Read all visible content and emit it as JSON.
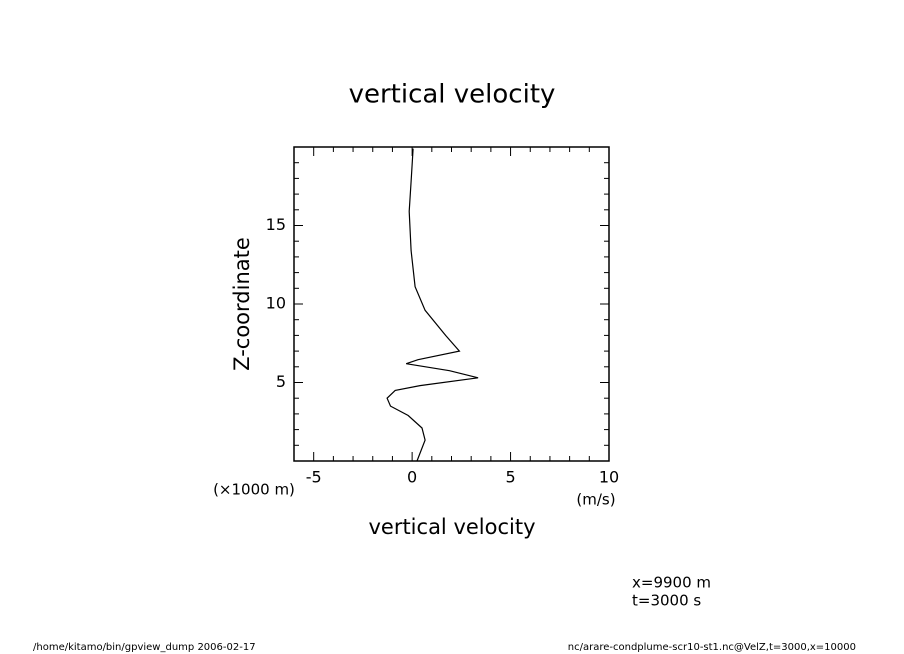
{
  "chart_data": {
    "type": "line",
    "title": "vertical velocity",
    "x_label": "vertical velocity",
    "y_label": "Z-coordinate",
    "x_unit": "(m/s)",
    "y_unit": "(×1000 m)",
    "annotations": [
      "x=9900 m",
      "t=3000 s"
    ],
    "footer_left": "/home/kitamo/bin/gpview_dump  2006-02-17",
    "footer_right": "nc/arare-condplume-scr10-st1.nc@VelZ,t=3000,x=10000",
    "z": [
      0,
      1.33,
      2.1,
      2.9,
      3.5,
      4.0,
      4.5,
      4.8,
      5.3,
      5.75,
      6.2,
      6.45,
      7.0,
      8.0,
      9.6,
      11.1,
      13.4,
      15.9,
      17.8,
      19.9
    ],
    "values": [
      0.25,
      0.66,
      0.5,
      -0.2,
      -1.1,
      -1.27,
      -0.86,
      0.4,
      3.35,
      1.9,
      -0.3,
      0.3,
      2.4,
      1.7,
      0.66,
      0.15,
      -0.05,
      -0.15,
      -0.05,
      0.05
    ],
    "color": "#000000",
    "xlim": [
      -6,
      10
    ],
    "xticks": [
      -5,
      0,
      5,
      10
    ],
    "xminorticks": [
      -6,
      -4,
      -3,
      -2,
      -1,
      1,
      2,
      3,
      4,
      6,
      7,
      8,
      9
    ],
    "ylim": [
      0,
      20
    ],
    "yticks": [
      5,
      10,
      15
    ],
    "yminorticks": [
      1,
      2,
      3,
      4,
      6,
      7,
      8,
      9,
      11,
      12,
      13,
      14,
      16,
      17,
      18,
      19
    ]
  }
}
